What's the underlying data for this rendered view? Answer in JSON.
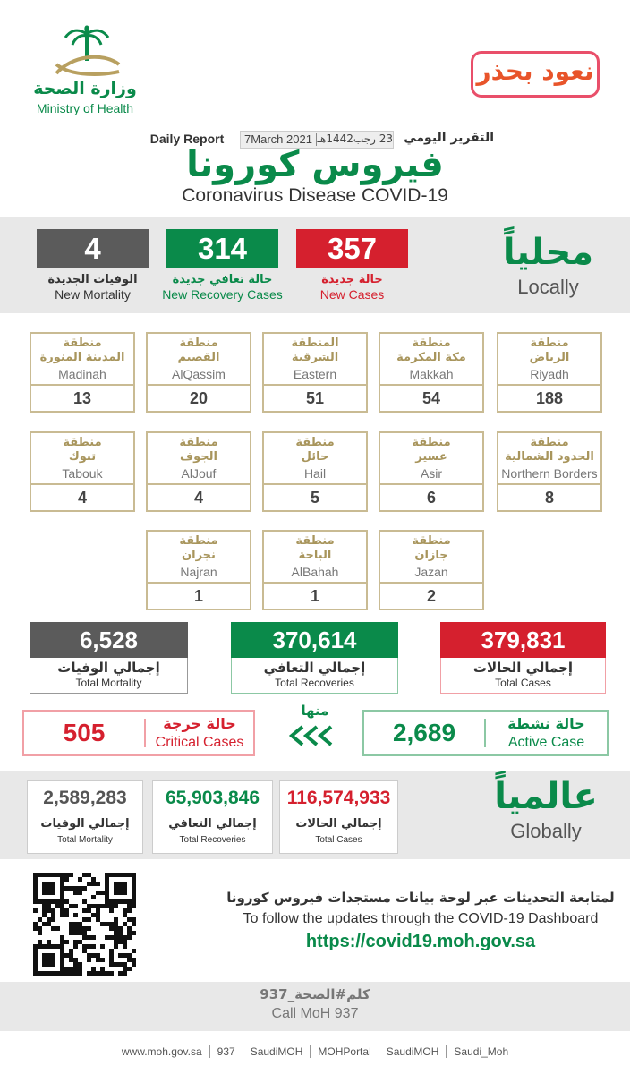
{
  "header": {
    "ministry_ar": "وزارة الصحة",
    "ministry_en": "Ministry of Health",
    "campaign": "نعود بحذر",
    "report_ar": "التقرير اليومي",
    "date_hijri": "23 رجب1442هـ",
    "date_greg": "7March 2021",
    "report_en": "Daily Report",
    "title_ar": "فيروس كورونا",
    "title_en": "Coronavirus Disease COVID-19"
  },
  "local": {
    "label_ar": "محلياً",
    "label_en": "Locally",
    "new_cases": {
      "value": "357",
      "ar": "حالة جديدة",
      "en": "New Cases"
    },
    "new_recovery": {
      "value": "314",
      "ar": "حالة تعافي جديدة",
      "en": "New Recovery Cases"
    },
    "new_mortality": {
      "value": "4",
      "ar": "الوفيات الجديدة",
      "en": "New Mortality"
    }
  },
  "regions": [
    {
      "prefix": "منطقة",
      "ar": "الرياض",
      "en": "Riyadh",
      "value": "188"
    },
    {
      "prefix": "منطقة",
      "ar": "مكة المكرمة",
      "en": "Makkah",
      "value": "54"
    },
    {
      "prefix": "المنطقة",
      "ar": "الشرقية",
      "en": "Eastern",
      "value": "51"
    },
    {
      "prefix": "منطقة",
      "ar": "القصيم",
      "en": "AlQassim",
      "value": "20"
    },
    {
      "prefix": "منطقة",
      "ar": "المدينة المنورة",
      "en": "Madinah",
      "value": "13"
    },
    {
      "prefix": "منطقة",
      "ar": "الحدود الشمالية",
      "en": "Northern Borders",
      "value": "8"
    },
    {
      "prefix": "منطقة",
      "ar": "عسير",
      "en": "Asir",
      "value": "6"
    },
    {
      "prefix": "منطقة",
      "ar": "حائل",
      "en": "Hail",
      "value": "5"
    },
    {
      "prefix": "منطقة",
      "ar": "الجوف",
      "en": "AlJouf",
      "value": "4"
    },
    {
      "prefix": "منطقة",
      "ar": "تبوك",
      "en": "Tabouk",
      "value": "4"
    },
    {
      "prefix": "منطقة",
      "ar": "جازان",
      "en": "Jazan",
      "value": "2"
    },
    {
      "prefix": "منطقة",
      "ar": "الباحة",
      "en": "AlBahah",
      "value": "1"
    },
    {
      "prefix": "منطقة",
      "ar": "نجران",
      "en": "Najran",
      "value": "1"
    }
  ],
  "totals": {
    "cases": {
      "value": "379,831",
      "ar": "إجمالي الحالات",
      "en": "Total Cases"
    },
    "recoveries": {
      "value": "370,614",
      "ar": "إجمالي التعافي",
      "en": "Total Recoveries"
    },
    "mortality": {
      "value": "6,528",
      "ar": "إجمالي الوفيات",
      "en": "Total Mortality"
    }
  },
  "of_which": "منها",
  "active": {
    "value": "2,689",
    "ar": "حالة نشطة",
    "en": "Active Case"
  },
  "critical": {
    "value": "505",
    "ar": "حالة حرجة",
    "en": "Critical Cases"
  },
  "global": {
    "label_ar": "عالمياً",
    "label_en": "Globally",
    "cases": {
      "value": "116,574,933",
      "ar": "إجمالي الحالات",
      "en": "Total Cases"
    },
    "recoveries": {
      "value": "65,903,846",
      "ar": "إجمالي التعافي",
      "en": "Total Recoveries"
    },
    "mortality": {
      "value": "2,589,283",
      "ar": "إجمالي الوفيات",
      "en": "Total Mortality"
    }
  },
  "dashboard": {
    "ar": "لمتابعة التحديثات عبر لوحة بيانات مستجدات فيروس كورونا",
    "en": "To follow the updates through the COVID-19 Dashboard",
    "url": "https://covid19.moh.gov.sa"
  },
  "call": {
    "ar": "كلم#الصحة_937",
    "en": "Call MoH 937"
  },
  "footer": {
    "links": [
      "www.moh.gov.sa",
      "937",
      "SaudiMOH",
      "MOHPortal",
      "SaudiMOH",
      "Saudi_Moh"
    ]
  }
}
